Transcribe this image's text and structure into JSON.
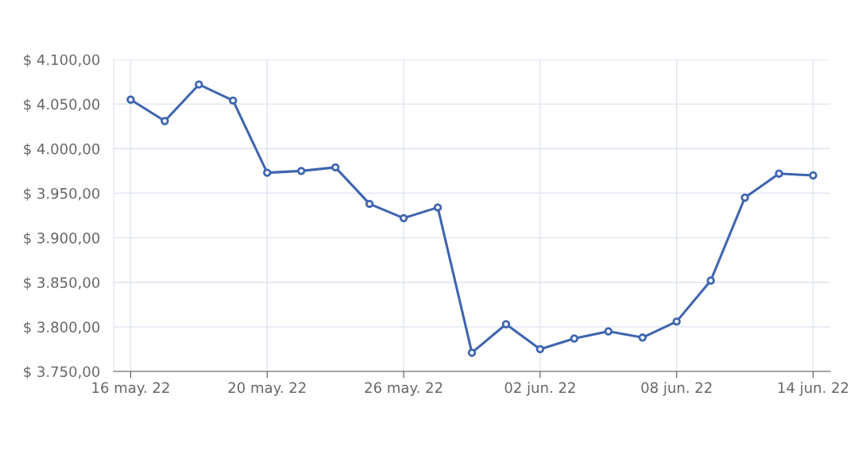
{
  "chart_data": {
    "type": "line",
    "categories": [
      "16 may. 22",
      null,
      null,
      null,
      "20 may. 22",
      null,
      null,
      null,
      "26 may. 22",
      null,
      null,
      null,
      "02 jun. 22",
      null,
      null,
      null,
      "08 jun. 22",
      null,
      null,
      null,
      "14 jun. 22"
    ],
    "series": [
      {
        "color": "#3f65b0",
        "values": [
          4055,
          4031,
          4072,
          4054,
          3973,
          3975,
          3979,
          3938,
          3922,
          3934,
          3771,
          3803,
          3775,
          3787,
          3795,
          3788,
          3806,
          3852,
          3945,
          3972,
          3970
        ]
      }
    ],
    "ylim": [
      3750,
      4100
    ],
    "yticks": [
      {
        "value": 3750,
        "label": "$ 3.750,00"
      },
      {
        "value": 3800,
        "label": "$ 3.800,00"
      },
      {
        "value": 3850,
        "label": "$ 3.850,00"
      },
      {
        "value": 3900,
        "label": "$ 3.900,00"
      },
      {
        "value": 3950,
        "label": "$ 3.950,00"
      },
      {
        "value": 4000,
        "label": "$ 4.000,00"
      },
      {
        "value": 4050,
        "label": "$ 4.050,00"
      },
      {
        "value": 4100,
        "label": "$ 4.100,00"
      }
    ],
    "grid": true,
    "marker": "circle",
    "line_style": "solid",
    "legend": false
  }
}
